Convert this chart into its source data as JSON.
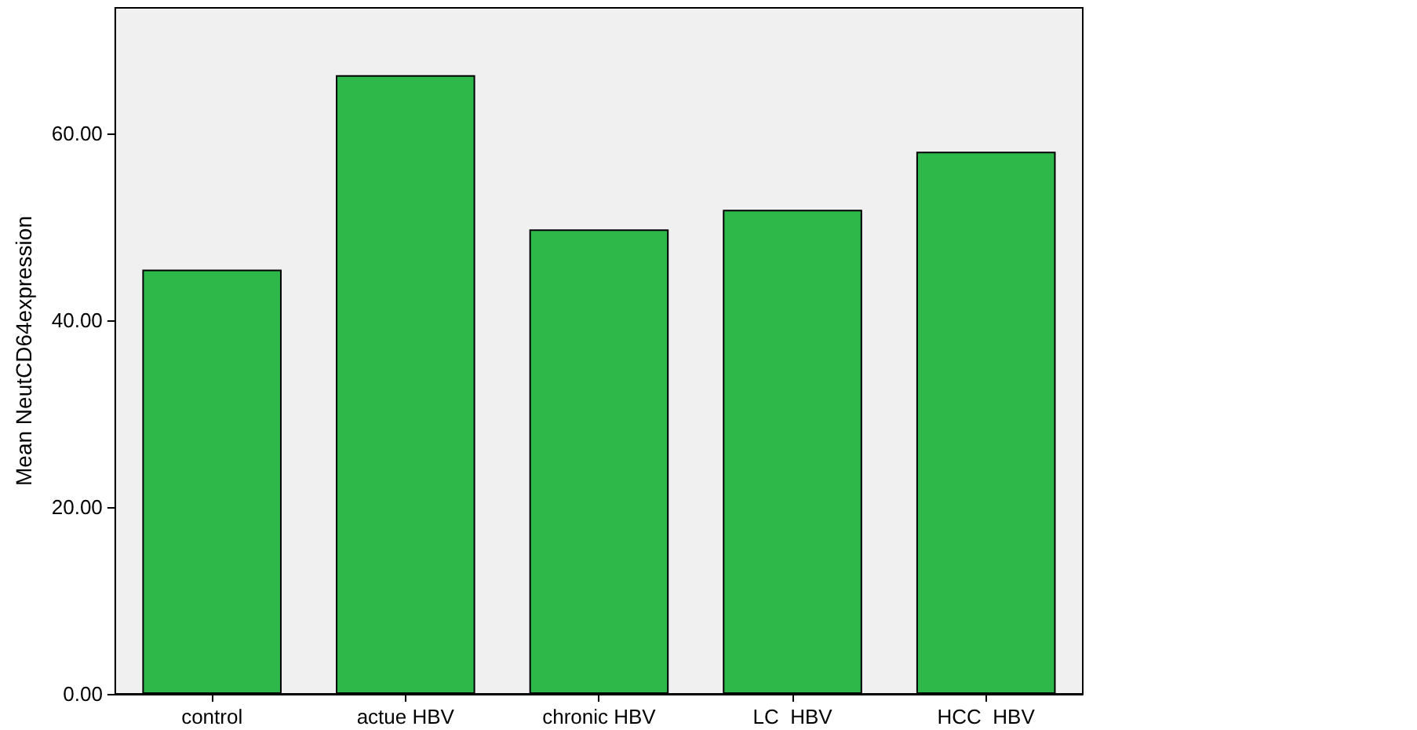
{
  "chart_data": {
    "type": "bar",
    "ylabel": "Mean NeutCD64expression",
    "categories": [
      "control",
      "actue HBV",
      "chronic HBV",
      "LC  HBV",
      "HCC  HBV"
    ],
    "values": [
      45.4,
      66.2,
      49.7,
      51.8,
      58.0
    ],
    "color": "#2eb84a",
    "ylim": [
      0,
      73.4
    ],
    "yticks": [
      {
        "value": 0,
        "label": "0.00"
      },
      {
        "value": 20,
        "label": "20.00"
      },
      {
        "value": 40,
        "label": "40.00"
      },
      {
        "value": 60,
        "label": "60.00"
      }
    ],
    "grid": false
  }
}
